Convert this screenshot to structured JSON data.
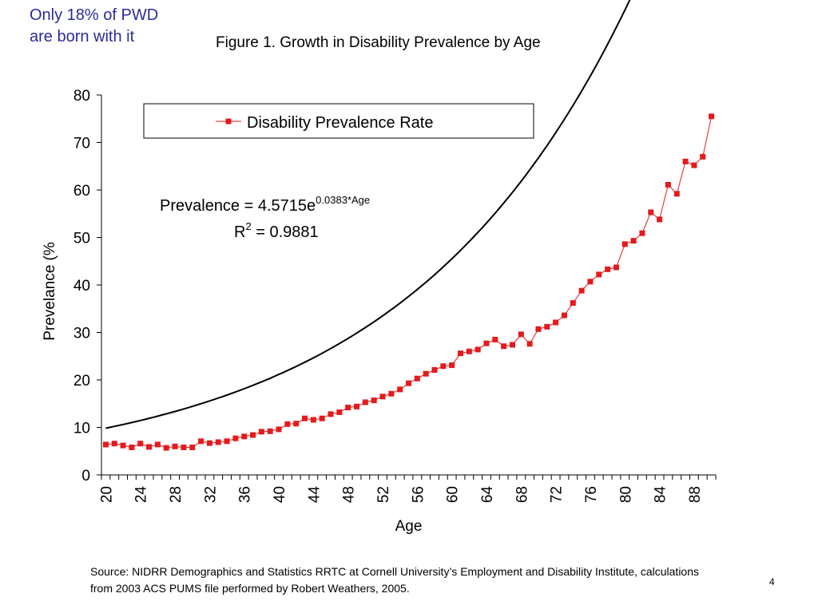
{
  "slide": {
    "callout": [
      "Only 18% of PWD",
      "are born with it"
    ],
    "figure_title": "Figure 1.  Growth in Disability Prevalence by Age",
    "source": "Source:  NIDRR Demographics and Statistics RRTC at Cornell University’s Employment and Disability Institute, calculations from 2003 ACS PUMS file performed by Robert Weathers, 2005.",
    "page_number": "4"
  },
  "colors": {
    "series": "#e41a1c",
    "trend": "#000000",
    "callout": "#2b2b9a"
  },
  "chart_data": {
    "type": "line",
    "title": "Figure 1.  Growth in Disability Prevalence by Age",
    "xlabel": "Age",
    "ylabel": "Prevelance (%",
    "xlim": [
      20,
      90
    ],
    "ylim": [
      0,
      80
    ],
    "yticks": [
      0,
      10,
      20,
      30,
      40,
      50,
      60,
      70,
      80
    ],
    "xtick_labels": [
      20,
      24,
      28,
      32,
      36,
      40,
      44,
      48,
      52,
      56,
      60,
      64,
      68,
      72,
      76,
      80,
      84,
      88
    ],
    "legend": {
      "entries": [
        "Disability Prevalence Rate"
      ],
      "placement": "top"
    },
    "grid": false,
    "series": [
      {
        "name": "Disability Prevalence Rate",
        "x": [
          20,
          21,
          22,
          23,
          24,
          25,
          26,
          27,
          28,
          29,
          30,
          31,
          32,
          33,
          34,
          35,
          36,
          37,
          38,
          39,
          40,
          41,
          42,
          43,
          44,
          45,
          46,
          47,
          48,
          49,
          50,
          51,
          52,
          53,
          54,
          55,
          56,
          57,
          58,
          59,
          60,
          61,
          62,
          63,
          64,
          65,
          66,
          67,
          68,
          69,
          70,
          71,
          72,
          73,
          74,
          75,
          76,
          77,
          78,
          79,
          80,
          81,
          82,
          83,
          84,
          85,
          86,
          87,
          88,
          89,
          90
        ],
        "values": [
          6.4,
          6.6,
          6.2,
          5.8,
          6.6,
          5.9,
          6.4,
          5.7,
          6.0,
          5.8,
          5.8,
          7.1,
          6.7,
          6.9,
          7.1,
          7.7,
          8.1,
          8.4,
          9.1,
          9.2,
          9.6,
          10.7,
          10.8,
          11.9,
          11.6,
          11.9,
          12.8,
          13.2,
          14.2,
          14.4,
          15.3,
          15.7,
          16.5,
          17.1,
          18.0,
          19.3,
          20.3,
          21.3,
          22.1,
          22.9,
          23.1,
          25.6,
          26.0,
          26.4,
          27.7,
          28.5,
          27.1,
          27.4,
          29.6,
          27.6,
          30.7,
          31.2,
          32.1,
          33.6,
          36.2,
          38.8,
          40.7,
          42.2,
          43.3,
          43.7,
          48.6,
          49.3,
          50.9,
          55.3,
          53.8,
          61.1,
          59.2,
          66.0,
          65.2,
          67.0,
          75.5
        ]
      }
    ],
    "trendline": {
      "type": "exponential",
      "coef": 4.5715,
      "rate": 0.0383,
      "equation_prefix": "Prevalence = 4.5715e",
      "equation_exponent": "0.0383*Age",
      "r2_prefix": "R",
      "r2_sup": "2",
      "r2_suffix": " = 0.9881"
    }
  }
}
